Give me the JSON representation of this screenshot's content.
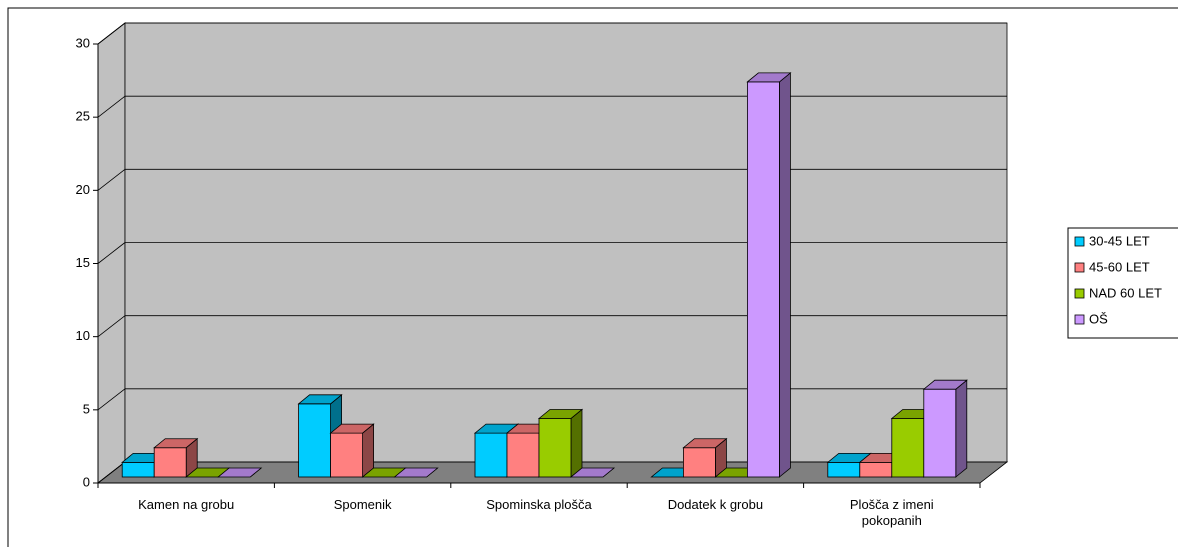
{
  "chart_data": {
    "type": "bar3d",
    "categories": [
      "Kamen na grobu",
      "Spomenik",
      "Spominska plošča",
      "Dodatek k grobu",
      "Plošča z imeni pokopanih"
    ],
    "series": [
      {
        "name": "30-45 LET",
        "color": "#00ccff",
        "values": [
          1,
          5,
          3,
          0,
          1
        ]
      },
      {
        "name": "45-60 LET",
        "color": "#ff8080",
        "values": [
          2,
          3,
          3,
          2,
          1
        ]
      },
      {
        "name": "NAD 60 LET",
        "color": "#99cc00",
        "values": [
          0,
          0,
          4,
          0,
          4
        ]
      },
      {
        "name": "OŠ",
        "color": "#cc99ff",
        "values": [
          0,
          0,
          0,
          27,
          6
        ]
      }
    ],
    "ylim": [
      0,
      30
    ],
    "yticks": [
      0,
      5,
      10,
      15,
      20,
      25,
      30
    ],
    "grid": true,
    "legend": "right"
  }
}
